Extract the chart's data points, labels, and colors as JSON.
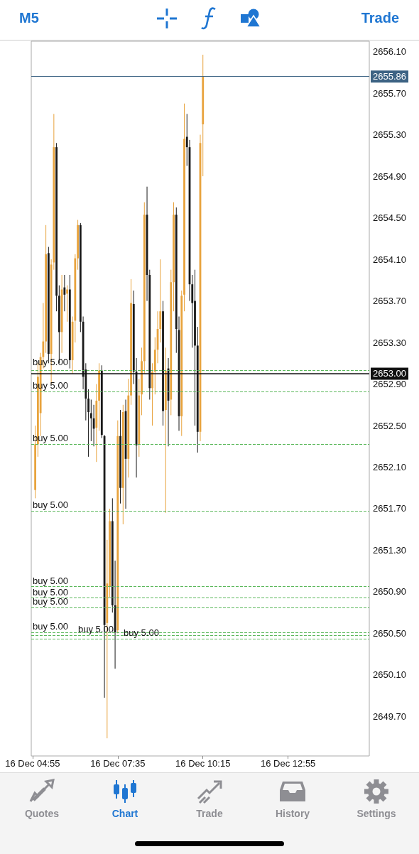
{
  "chart_data": {
    "type": "candlestick",
    "categories": [
      "16 Dec 04:55",
      null,
      null,
      null,
      null,
      null,
      null,
      null,
      null,
      null,
      null,
      null,
      null,
      null,
      null,
      null,
      null,
      null,
      null,
      null,
      null,
      null,
      null,
      null,
      null,
      null,
      null,
      null,
      null,
      null,
      null,
      null,
      "16 Dec 07:35",
      null,
      null,
      null,
      null,
      null,
      null,
      null,
      null,
      null,
      null,
      null,
      null,
      null,
      null,
      null,
      null,
      null,
      null,
      null,
      null,
      null,
      null,
      null,
      null,
      null,
      null,
      null,
      null,
      null,
      null,
      null,
      "16 Dec 10:15",
      null,
      null,
      null,
      null,
      null,
      null,
      null,
      null,
      null,
      null,
      null,
      null,
      null,
      null,
      null,
      null,
      null,
      null,
      null,
      null,
      null,
      null,
      null,
      null,
      null,
      null,
      null,
      null,
      null,
      null,
      null,
      "16 Dec 12:55",
      null,
      null,
      null,
      null,
      null,
      null,
      null,
      null,
      null,
      null,
      null,
      null,
      null,
      null,
      null,
      null,
      null,
      null,
      null,
      null,
      null,
      null,
      null,
      null,
      null,
      null,
      null,
      null,
      null,
      null
    ],
    "ohlc": [
      null,
      [
        2651.88,
        2652.5,
        2651.8,
        2652.32
      ],
      [
        2652.32,
        2653.1,
        2652.2,
        2652.97
      ],
      [
        2652.62,
        2653.2,
        2652.4,
        2653.16
      ],
      [
        2653.16,
        2653.68,
        2653.05,
        2653.31
      ],
      [
        2653.31,
        2654.43,
        2653.2,
        2654.15
      ],
      [
        2654.16,
        2654.22,
        2653.1,
        2653.19
      ],
      [
        2653.19,
        2654.1,
        2652.9,
        2654.05
      ],
      [
        2654.07,
        2655.5,
        2654.0,
        2655.18
      ],
      [
        2655.18,
        2655.22,
        2653.6,
        2653.75
      ],
      [
        2653.75,
        2653.85,
        2653.1,
        2653.4
      ],
      [
        2653.4,
        2653.95,
        2653.2,
        2653.81
      ],
      [
        2653.83,
        2653.95,
        2653.6,
        2653.76
      ],
      [
        2653.77,
        2653.85,
        2653.5,
        2653.81
      ],
      [
        2653.81,
        2653.95,
        2653.05,
        2653.13
      ],
      [
        2653.13,
        2653.55,
        2653.0,
        2653.5
      ],
      [
        2653.51,
        2654.15,
        2653.3,
        2654.11
      ],
      [
        2654.11,
        2654.48,
        2654.0,
        2654.43
      ],
      [
        2654.43,
        2654.45,
        2653.4,
        2653.5
      ],
      [
        2653.5,
        2653.55,
        2652.85,
        2652.97
      ],
      [
        2653.04,
        2653.1,
        2652.55,
        2652.76
      ],
      [
        2652.76,
        2652.85,
        2652.2,
        2652.63
      ],
      [
        2652.62,
        2652.75,
        2652.35,
        2652.57
      ],
      [
        2652.57,
        2652.7,
        2652.3,
        2652.47
      ],
      [
        2652.48,
        2652.9,
        2652.15,
        2652.74
      ],
      [
        2652.74,
        2653.1,
        2652.45,
        2653.03
      ],
      [
        2653.03,
        2653.08,
        2652.38,
        2652.41
      ],
      [
        2652.4,
        2652.41,
        2649.88,
        2650.58
      ],
      [
        2650.6,
        2651.4,
        2649.49,
        2650.98
      ],
      [
        2650.95,
        2651.7,
        2650.85,
        2651.58
      ],
      [
        2651.58,
        2651.8,
        2650.7,
        2650.77
      ],
      [
        2650.77,
        2651.2,
        2650.16,
        2650.51
      ],
      [
        2650.53,
        2652.55,
        2650.5,
        2652.4
      ],
      [
        2652.4,
        2652.65,
        2651.75,
        2651.9
      ],
      [
        2651.9,
        2652.7,
        2651.55,
        2652.63
      ],
      [
        2652.64,
        2652.75,
        2651.7,
        2652.18
      ],
      [
        2652.18,
        2652.95,
        2652.0,
        2652.79
      ],
      [
        2652.79,
        2653.91,
        2652.7,
        2653.68
      ],
      [
        2653.67,
        2653.8,
        2652.9,
        2653.02
      ],
      [
        2653.02,
        2653.15,
        2652.0,
        2652.31
      ],
      [
        2652.32,
        2652.95,
        2652.2,
        2652.79
      ],
      [
        2652.8,
        2653.25,
        2652.6,
        2653.12
      ],
      [
        2653.12,
        2654.65,
        2653.0,
        2654.53
      ],
      [
        2654.53,
        2654.8,
        2653.7,
        2653.95
      ],
      [
        2653.95,
        2654.0,
        2652.75,
        2652.86
      ],
      [
        2652.86,
        2653.1,
        2652.5,
        2653.02
      ],
      [
        2653.02,
        2653.35,
        2652.8,
        2653.23
      ],
      [
        2653.23,
        2653.6,
        2653.1,
        2653.43
      ],
      [
        2653.43,
        2654.1,
        2653.3,
        2653.6
      ],
      [
        2653.6,
        2653.7,
        2652.5,
        2652.64
      ],
      [
        2652.65,
        2653.25,
        2651.66,
        2653.03
      ],
      [
        2653.05,
        2653.15,
        2652.3,
        2652.74
      ],
      [
        2652.75,
        2654.0,
        2652.6,
        2653.88
      ],
      [
        2653.88,
        2654.65,
        2653.6,
        2654.53
      ],
      [
        2654.53,
        2654.6,
        2653.2,
        2653.43
      ],
      [
        2653.42,
        2653.55,
        2652.45,
        2652.59
      ],
      [
        2652.59,
        2653.8,
        2652.4,
        2653.75
      ],
      [
        2653.76,
        2655.6,
        2653.6,
        2655.26
      ],
      [
        2655.28,
        2655.5,
        2655.0,
        2655.18
      ],
      [
        2655.18,
        2655.25,
        2653.7,
        2653.86
      ],
      [
        2653.86,
        2653.95,
        2653.25,
        2653.68
      ],
      [
        2653.7,
        2654.0,
        2652.5,
        2653.27
      ],
      [
        2653.27,
        2653.45,
        2652.24,
        2652.44
      ],
      [
        2652.44,
        2655.3,
        2652.35,
        2655.22
      ],
      [
        2655.4,
        2656.07,
        2654.9,
        2655.86
      ],
      null,
      null,
      null,
      null,
      null,
      null,
      null,
      null,
      null,
      null,
      null,
      null,
      null,
      null,
      null,
      null,
      null,
      null,
      null,
      null,
      null,
      null,
      null,
      null,
      null,
      null,
      null,
      null,
      null,
      null,
      null,
      null,
      null,
      null,
      null,
      null,
      null,
      null,
      null,
      null,
      null,
      null,
      null,
      null,
      null,
      null,
      null,
      null,
      null,
      null,
      null,
      null,
      null,
      null,
      null,
      null,
      null,
      null,
      null,
      null,
      null,
      null
    ],
    "colors": [
      null,
      "#e8a33d",
      "#e8a33d",
      "#e8a33d",
      "#e8a33d",
      "#e8a33d",
      "#1a1a1a",
      "#e8a33d",
      "#e8a33d",
      "#1a1a1a",
      "#1a1a1a",
      "#e8a33d",
      "#1a1a1a",
      "#e8a33d",
      "#1a1a1a",
      "#e8a33d",
      "#e8a33d",
      "#e8a33d",
      "#1a1a1a",
      "#1a1a1a",
      "#1a1a1a",
      "#1a1a1a",
      "#1a1a1a",
      "#1a1a1a",
      "#e8a33d",
      "#e8a33d",
      "#1a1a1a",
      "#1a1a1a",
      "#e8a33d",
      "#e8a33d",
      "#1a1a1a",
      "#1a1a1a",
      "#e8a33d",
      "#1a1a1a",
      "#e8a33d",
      "#1a1a1a",
      "#e8a33d",
      "#e8a33d",
      "#1a1a1a",
      "#1a1a1a",
      "#e8a33d",
      "#e8a33d",
      "#e8a33d",
      "#1a1a1a",
      "#1a1a1a",
      "#e8a33d",
      "#e8a33d",
      "#e8a33d",
      "#e8a33d",
      "#1a1a1a",
      "#e8a33d",
      "#1a1a1a",
      "#e8a33d",
      "#e8a33d",
      "#1a1a1a",
      "#1a1a1a",
      "#e8a33d",
      "#e8a33d",
      "#1a1a1a",
      "#1a1a1a",
      "#1a1a1a",
      "#1a1a1a",
      "#1a1a1a",
      "#e8a33d",
      "#e8a33d",
      null,
      null,
      null,
      null,
      null,
      null,
      null,
      null,
      null,
      null,
      null,
      null,
      null,
      null,
      null,
      null,
      null,
      null,
      null,
      null,
      null,
      null,
      null,
      null,
      null,
      null,
      null,
      null,
      null,
      null,
      null,
      null,
      null,
      null,
      null,
      null,
      null,
      null,
      null,
      null,
      null,
      null,
      null,
      null,
      null,
      null,
      null,
      null,
      null,
      null,
      null,
      null,
      null,
      null,
      null,
      null,
      null,
      null,
      null,
      null,
      null,
      null
    ],
    "ylim": [
      2649.32,
      2656.2
    ],
    "yticks": [
      {
        "value": 2649.7,
        "label": "2649.70"
      },
      {
        "value": 2650.1,
        "label": "2650.10"
      },
      {
        "value": 2650.5,
        "label": "2650.50"
      },
      {
        "value": 2650.9,
        "label": "2650.90"
      },
      {
        "value": 2651.3,
        "label": "2651.30"
      },
      {
        "value": 2651.7,
        "label": "2651.70"
      },
      {
        "value": 2652.1,
        "label": "2652.10"
      },
      {
        "value": 2652.5,
        "label": "2652.50"
      },
      {
        "value": 2652.9,
        "label": "2652.90"
      },
      {
        "value": 2653.3,
        "label": "2653.30"
      },
      {
        "value": 2653.7,
        "label": "2653.70"
      },
      {
        "value": 2654.1,
        "label": "2654.10"
      },
      {
        "value": 2654.5,
        "label": "2654.50"
      },
      {
        "value": 2654.9,
        "label": "2654.90"
      },
      {
        "value": 2655.3,
        "label": "2655.30"
      },
      {
        "value": 2655.7,
        "label": "2655.70"
      },
      {
        "value": 2656.1,
        "label": "2656.10"
      }
    ],
    "grid": false,
    "ref_lines": [
      {
        "axis": "y",
        "value": 2655.86,
        "label": "2655.86",
        "color": "#3d6384",
        "line_style": "solid"
      },
      {
        "axis": "y",
        "value": 2653.03,
        "label": "buy 5.00",
        "color": "#5cb85c",
        "line_style": "dashed"
      },
      {
        "axis": "y",
        "value": 2653.0,
        "label": "2653.00",
        "color": "#111111",
        "line_style": "solid"
      },
      {
        "axis": "y",
        "value": 2652.83,
        "label": "buy 5.00",
        "color": "#5cb85c",
        "line_style": "dashed"
      },
      {
        "axis": "y",
        "value": 2652.32,
        "label": "buy 5.00",
        "color": "#5cb85c",
        "line_style": "dashed"
      },
      {
        "axis": "y",
        "value": 2651.68,
        "label": "buy 5.00",
        "color": "#5cb85c",
        "line_style": "dashed"
      },
      {
        "axis": "y",
        "value": 2650.95,
        "label": "buy 5.00",
        "color": "#5cb85c",
        "line_style": "dashed"
      },
      {
        "axis": "y",
        "value": 2650.84,
        "label": "buy 5.00",
        "color": "#5cb85c",
        "line_style": "dashed"
      },
      {
        "axis": "y",
        "value": 2650.75,
        "label": "buy 5.00",
        "color": "#5cb85c",
        "line_style": "dashed"
      },
      {
        "axis": "y",
        "value": 2650.51,
        "label": "buy 5.00",
        "color": "#5cb85c",
        "line_style": "dashed"
      },
      {
        "axis": "y",
        "value": 2650.48,
        "label": "buy 5.00",
        "color": "#5cb85c",
        "line_style": "dashed"
      },
      {
        "axis": "y",
        "value": 2650.45,
        "label": "buy 5.00",
        "color": "#5cb85c",
        "line_style": "dashed"
      }
    ],
    "annotations": [
      "M5",
      "Trade",
      "Quotes",
      "Chart",
      "Trade",
      "History",
      "Settings"
    ]
  }
}
